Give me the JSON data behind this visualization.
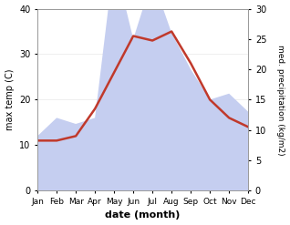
{
  "months": [
    "Jan",
    "Feb",
    "Mar",
    "Apr",
    "May",
    "Jun",
    "Jul",
    "Aug",
    "Sep",
    "Oct",
    "Nov",
    "Dec"
  ],
  "temp": [
    11,
    11,
    12,
    18,
    26,
    34,
    33,
    35,
    28,
    20,
    16,
    14
  ],
  "precip": [
    9,
    12,
    11,
    12,
    38,
    25,
    35,
    26,
    20,
    15,
    16,
    13
  ],
  "temp_ylim": [
    0,
    40
  ],
  "precip_ylim": [
    0,
    30
  ],
  "precip_scale_factor": 1.3333,
  "temp_color": "#c0392b",
  "precip_fill_color": "#c5cef0",
  "bg_color": "#ffffff",
  "xlabel": "date (month)",
  "ylabel_left": "max temp (C)",
  "ylabel_right": "med. precipitation (kg/m2)"
}
